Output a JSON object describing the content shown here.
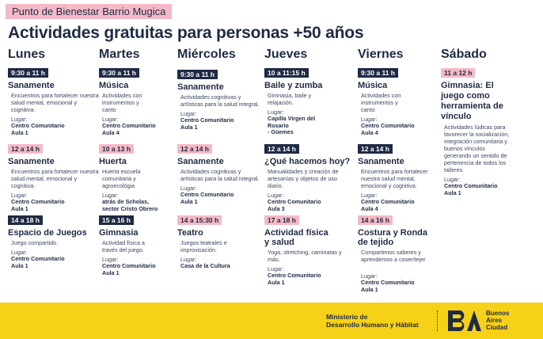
{
  "header": {
    "place_tag": "Punto de Bienestar Barrio Mugica",
    "title": "Actividades gratuitas para personas +50 años"
  },
  "colors": {
    "navy": "#1f2a44",
    "pink": "#f4b9c6",
    "yellow": "#f7d117"
  },
  "lugar_label": "Lugar:",
  "days": [
    {
      "name": "Lunes",
      "blocks": [
        {
          "time": "9:30 a 11 h",
          "tag": "dark",
          "activity": "Sanamente",
          "desc": "Encuentros para fortalecer nuestra salud mental, emocional y cognitiva.",
          "place1": "Centro Comunitario",
          "place2": "Aula 1"
        },
        {
          "time": "12 a 14 h",
          "tag": "pink",
          "activity": "Sanamente",
          "desc": "Encuentros para fortalecer nuestra salud mental, emocional y cognitiva.",
          "place1": "Centro Comunitario",
          "place2": "Aula 1"
        },
        {
          "time": "14 a 18 h",
          "tag": "dark",
          "activity": "Espacio de Juegos",
          "desc": "Juego compartido.",
          "place1": "Centro Comunitario",
          "place2": "Aula 1"
        }
      ]
    },
    {
      "name": "Martes",
      "blocks": [
        {
          "time": "9:30 a 11 h",
          "tag": "dark",
          "activity": "Música",
          "desc": "Actividades con instrumentos y canto",
          "place1": "Centro Comunitario",
          "place2": "Aula 4"
        },
        {
          "time": "10 a 13 h",
          "tag": "pink",
          "activity": "Huerta",
          "desc": "Huerta escuela comunitaria y agroecológia",
          "place1": "atrás de Scholas,",
          "place2": "sector Cristo Obrero"
        },
        {
          "time": "15 a 16 h",
          "tag": "dark",
          "activity": "Gimnasia",
          "desc": "Actividad física a través del juego.",
          "place1": "Centro Comunitario",
          "place2": "Aula 1"
        }
      ]
    },
    {
      "name": "Miércoles",
      "blocks": [
        {
          "time": "9:30 a 11 h",
          "tag": "dark",
          "activity": "Sanamente",
          "desc": "Actividades cognitivas y artísticas para la salud integral.",
          "place1": "Centro Comunitario",
          "place2": "Aula 1"
        },
        {
          "time": "12 a 14 h",
          "tag": "pink",
          "activity": "Sanamente",
          "desc": "Actividades cognitivas y artísticas para la salud integral.",
          "place1": "Centro Comunitario",
          "place2": "Aula 1"
        },
        {
          "time": "14 a 15:30 h",
          "tag": "pink",
          "activity": "Teatro",
          "desc": "Juegos teatrales e improvisación.",
          "place1": "Casa de la Cultura",
          "place2": ""
        }
      ]
    },
    {
      "name": "Jueves",
      "blocks": [
        {
          "time": "10 a 11:15 h",
          "tag": "dark",
          "activity": "Baile y zumba",
          "desc": "Gimnasia, baile y relajación.",
          "place1": "Capilla Virgen del Rosario",
          "place2": "- Güemes"
        },
        {
          "time": "12 a 14 h",
          "tag": "dark",
          "activity": "¿Qué hacemos hoy?",
          "desc": "Manualidades y creación de artesanías y objetos de uso diario.",
          "place1": "Centro Comunitario",
          "place2": "Aula 3"
        },
        {
          "time": "17 a 18 h",
          "tag": "pink",
          "activity": "Actividad física y salud",
          "desc": "Yoga, stretching, caminatas y más.",
          "place1": "Centro Comunitario",
          "place2": "Aula 1"
        }
      ]
    },
    {
      "name": "Viernes",
      "blocks": [
        {
          "time": "9:30 a 11 h",
          "tag": "dark",
          "activity": "Música",
          "desc": "Actividades con instrumentos y canto",
          "place1": "Centro Comunitario",
          "place2": "Aula 4"
        },
        {
          "time": "12 a 14 h",
          "tag": "dark",
          "activity": "Sanamente",
          "desc": "Encuentros para fortalecer nuestra salud mental, emocional y cognitiva.",
          "place1": "Centro Comunitario",
          "place2": "Aula 4"
        },
        {
          "time": "14 a 16 h",
          "tag": "pink",
          "activity": "Costura y Ronda de tejido",
          "desc": "Compartimos saberes y aprendemos a coser/tejer",
          "place1": "Centro Comunitario",
          "place2": "Aula 1"
        }
      ]
    },
    {
      "name": "Sábado",
      "blocks": [
        {
          "time": "11 a 12 h",
          "tag": "pink",
          "activity": "Gimnasia: El juego como herramienta de vínculo",
          "desc": "Actividades lúdicas para favorecer la socialización, integración comunitaria y buenos vínculos generando un sentido de pertenencia de todos los talleres",
          "place1": "Centro Comunitario",
          "place2": "Aula 1"
        }
      ]
    }
  ],
  "footer": {
    "ministry_line1": "Ministerio de",
    "ministry_line2": "Desarrollo Humano y Hábitat",
    "logo_mark": "BA",
    "city_line1": "Buenos",
    "city_line2": "Aires",
    "city_line3": "Ciudad"
  }
}
